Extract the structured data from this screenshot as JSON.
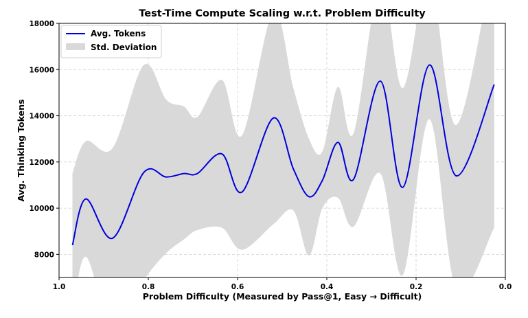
{
  "chart_data": {
    "type": "line",
    "title": "Test-Time Compute Scaling w.r.t. Problem Difficulty",
    "xlabel": "Problem Difficulty (Measured by Pass@1, Easy → Difficult)",
    "ylabel": "Avg. Thinking Tokens",
    "xlim": [
      1.0,
      0.0
    ],
    "ylim": [
      7000,
      18000
    ],
    "x_ticks": [
      "1.0",
      "0.8",
      "0.6",
      "0.4",
      "0.2",
      "0.0"
    ],
    "y_ticks": [
      "8000",
      "10000",
      "12000",
      "14000",
      "16000",
      "18000"
    ],
    "grid": true,
    "legend_position": "top-left",
    "series": [
      {
        "name": "Avg. Tokens",
        "color": "#0000dd",
        "x": [
          0.97,
          0.94,
          0.88,
          0.81,
          0.76,
          0.72,
          0.69,
          0.635,
          0.59,
          0.52,
          0.475,
          0.44,
          0.41,
          0.375,
          0.34,
          0.28,
          0.23,
          0.17,
          0.11,
          0.025
        ],
        "y": [
          8400,
          10400,
          8700,
          11550,
          11350,
          11500,
          11500,
          12350,
          10700,
          13900,
          11700,
          10500,
          11200,
          12850,
          11250,
          15500,
          10900,
          16200,
          11400,
          15350
        ]
      },
      {
        "name": "Std. Deviation",
        "color": "#d9d9d9",
        "x": [
          0.97,
          0.94,
          0.88,
          0.81,
          0.76,
          0.72,
          0.69,
          0.635,
          0.59,
          0.52,
          0.475,
          0.44,
          0.41,
          0.375,
          0.34,
          0.28,
          0.23,
          0.17,
          0.11,
          0.025
        ],
        "upper": [
          11500,
          12900,
          12600,
          16200,
          14700,
          14400,
          13950,
          15550,
          13150,
          18500,
          15200,
          13000,
          12450,
          15250,
          13250,
          19800,
          15200,
          20100,
          13600,
          21000
        ],
        "lower": [
          5300,
          7900,
          4800,
          6900,
          8050,
          8650,
          9050,
          9150,
          8200,
          9300,
          9900,
          7950,
          10000,
          10450,
          9200,
          11500,
          7100,
          13850,
          6500,
          9150
        ]
      }
    ]
  }
}
